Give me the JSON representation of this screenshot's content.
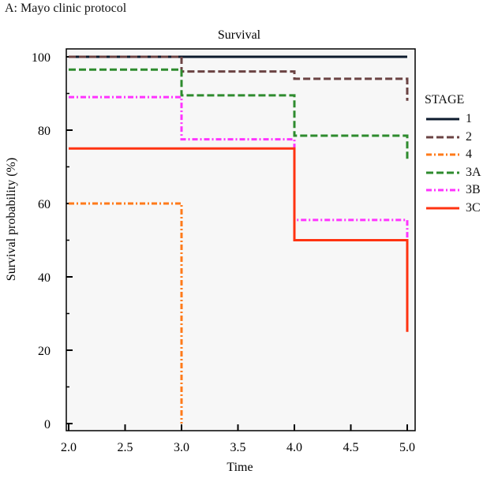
{
  "panel_label": "A: Mayo clinic protocol",
  "legend_title": "STAGE",
  "chart_data": {
    "type": "line",
    "subtype": "kaplan-meier step",
    "title": "Survival",
    "xlabel": "Time",
    "ylabel": "Survival probability (%)",
    "xlim": [
      2.0,
      5.0
    ],
    "ylim": [
      0,
      100
    ],
    "x_ticks": [
      "2.0",
      "2.5",
      "3.0",
      "3.5",
      "4.0",
      "4.5",
      "5.0"
    ],
    "y_ticks": [
      "0",
      "20",
      "40",
      "60",
      "80",
      "100"
    ],
    "grid": false,
    "legend_position": "right",
    "series": [
      {
        "name": "1",
        "color": "#0d1b2e",
        "dash": "solid",
        "x": [
          2.0,
          5.0
        ],
        "y": [
          100,
          100
        ]
      },
      {
        "name": "2",
        "color": "#6b4343",
        "dash": "dash",
        "x": [
          2.0,
          3.0,
          4.0,
          5.0
        ],
        "y": [
          100,
          96,
          94,
          88
        ]
      },
      {
        "name": "4",
        "color": "#ff7a1a",
        "dash": "dashdot",
        "x": [
          2.0,
          3.0
        ],
        "y": [
          60,
          0
        ]
      },
      {
        "name": "3A",
        "color": "#2e8b2e",
        "dash": "dash",
        "x": [
          2.0,
          3.0,
          4.0,
          5.0
        ],
        "y": [
          96.5,
          89.5,
          78.5,
          71.5
        ]
      },
      {
        "name": "3B",
        "color": "#ff33ff",
        "dash": "dashdot",
        "x": [
          2.0,
          3.0,
          4.0,
          5.0
        ],
        "y": [
          89,
          77.5,
          55.5,
          50
        ]
      },
      {
        "name": "3C",
        "color": "#ff3311",
        "dash": "solid",
        "x": [
          2.0,
          4.0,
          5.0
        ],
        "y": [
          75,
          50,
          25
        ]
      }
    ]
  }
}
